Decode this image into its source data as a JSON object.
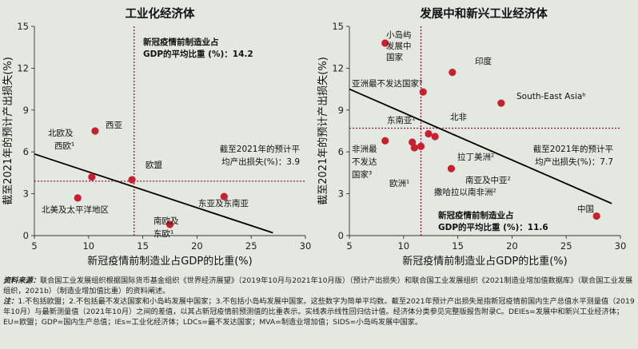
{
  "chart_data": [
    {
      "type": "scatter",
      "title": "工业化经济体",
      "xlabel": "新冠疫情前制造业占GDP的比重(%)",
      "ylabel": "截至2021年的预计产出损失(%)",
      "xlim": [
        5,
        30
      ],
      "ylim": [
        0,
        15
      ],
      "xticks": [
        "5",
        "10",
        "15",
        "20",
        "25",
        "30"
      ],
      "yticks": [
        "0",
        "3",
        "6",
        "9",
        "12",
        "15"
      ],
      "points": [
        {
          "label": "西亚",
          "x": 10.6,
          "y": 7.5
        },
        {
          "label": "北欧及西欧¹",
          "x": 10.3,
          "y": 4.2
        },
        {
          "label": "欧盟",
          "x": 14.0,
          "y": 4.0
        },
        {
          "label": "北美及太平洋地区",
          "x": 9.0,
          "y": 2.7
        },
        {
          "label": "东亚及东南亚",
          "x": 22.5,
          "y": 2.8
        },
        {
          "label": "南欧及东欧¹",
          "x": 17.5,
          "y": 0.8
        }
      ],
      "trend": {
        "x": [
          5,
          27
        ],
        "y": [
          5.85,
          0.2
        ]
      },
      "vline": {
        "x": 14.2,
        "label_line1": "新冠疫情前制造业占",
        "label_line2": "GDP的平均比重 (%)：14.2"
      },
      "hline": {
        "y": 3.9,
        "label_line1": "截至2021年的预计平",
        "label_line2": "均产出损失(%)：3.9"
      }
    },
    {
      "type": "scatter",
      "title": "发展中和新兴工业经济体",
      "xlabel": "新冠疫情前制造业占GDP的比重(%)",
      "ylabel": "截至2021年的预计产出损失(%)",
      "xlim": [
        5,
        30
      ],
      "ylim": [
        0,
        15
      ],
      "xticks": [
        "5",
        "10",
        "15",
        "20",
        "25",
        "30"
      ],
      "yticks": [
        "0",
        "3",
        "6",
        "9",
        "12",
        "15"
      ],
      "points": [
        {
          "label": "小岛屿发展中国家",
          "x": 8.3,
          "y": 13.8
        },
        {
          "label": "印度",
          "x": 14.5,
          "y": 11.7
        },
        {
          "label": "亚洲最不发达国家³",
          "x": 11.8,
          "y": 10.3
        },
        {
          "label": "South-East Asiaᵇ",
          "x": 19.0,
          "y": 9.5
        },
        {
          "label": "北非",
          "x": 12.3,
          "y": 7.3
        },
        {
          "label": "东南亚²",
          "x": 10.8,
          "y": 6.7
        },
        {
          "label": "拉丁美洲²",
          "x": 12.9,
          "y": 7.1
        },
        {
          "label": "非洲最不发达国家³",
          "x": 8.3,
          "y": 6.8
        },
        {
          "label": "欧洲¹",
          "x": 11.0,
          "y": 6.3
        },
        {
          "label": "撒哈拉以南非洲²",
          "x": 11.6,
          "y": 6.4
        },
        {
          "label": "南亚及中亚²",
          "x": 14.4,
          "y": 4.8
        },
        {
          "label": "中国",
          "x": 27.8,
          "y": 1.4
        }
      ],
      "trend": {
        "x": [
          5,
          29.2
        ],
        "y": [
          10.5,
          2.3
        ]
      },
      "vline": {
        "x": 11.6,
        "label_line1": "新冠疫情前制造业占",
        "label_line2": "GDP的平均比重 (%)：11.6"
      },
      "hline": {
        "y": 7.7,
        "label_line1": "截至2021年的预计平",
        "label_line2": "均产出损失(%)：7.7"
      }
    }
  ],
  "colors": {
    "point": "#c8202f",
    "ref_line": "#a3123e",
    "trend": "#000000",
    "background": "#e3e8e0"
  },
  "notes": {
    "source_label": "资料来源：",
    "source_text": "联合国工业发展组织根据国际货币基金组织《世界经济展望》（2019年10月与2021年10月版）（预计产出损失）和联合国工业发展组织《2021制造业增加值数据库》（联合国工业发展组织，2021b）（制造业增加值比重）的资料阐述。",
    "note_label": "注：",
    "note_text": "1.不包括欧盟；2.不包括最不发达国家和小岛屿发展中国家；3.不包括小岛屿发展中国家。这些数字为简单平均数。截至2021年预计产出损失是指新冠疫情前国内生产总值水平测量值（2019年10月）与最新测量值（2021年10月）之间的差值，以其占新冠疫情前预测值的比重表示。实线表示线性回归估计值。经济体分类参见完整版报告附录C。DEIEs=发展中和新兴工业经济体；EU=欧盟；GDP=国内生产总值；IEs=工业化经济体；LDCs=最不发达国家；MVA=制造业增加值；SIDS=小岛屿发展中国家。"
  }
}
